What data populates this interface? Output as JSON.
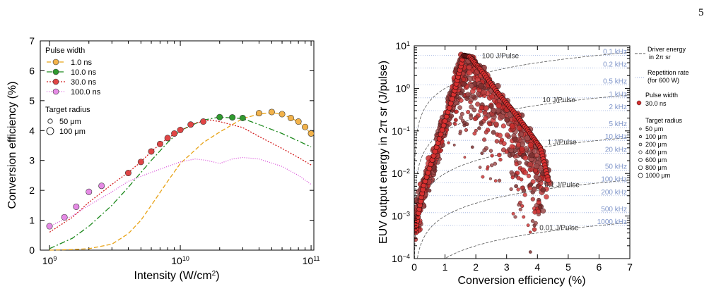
{
  "page_number": "5",
  "chart_data": [
    {
      "type": "line",
      "xlabel": "Intensity (W/cm²)",
      "xlabel_parts": {
        "base": "Intensity (W/cm",
        "sup": "2",
        "end": ")"
      },
      "ylabel": "Conversion efficiency (%)",
      "x_scale": "log",
      "xlim": [
        850000000.0,
        105000000000.0
      ],
      "ylim": [
        0,
        7
      ],
      "x_ticks": [
        {
          "value": 1000000000.0,
          "base": "10",
          "exp": "9"
        },
        {
          "value": 10000000000.0,
          "base": "10",
          "exp": "10"
        },
        {
          "value": 100000000000.0,
          "base": "10",
          "exp": "11"
        }
      ],
      "y_ticks": [
        "0",
        "1",
        "2",
        "3",
        "4",
        "5",
        "6",
        "7"
      ],
      "legend_title": "Pulse width",
      "legend_radius_title": "Target radius",
      "legend_radius": [
        {
          "label": "50 μm",
          "r": 3.2
        },
        {
          "label": "100 μm",
          "r": 5
        }
      ],
      "series": [
        {
          "name": "1.0 ns",
          "color": "#e8a317",
          "marker_fill": "#f2b24a",
          "dash": "6,3",
          "x": [
            1000000000.0,
            1500000000.0,
            2000000000.0,
            3000000000.0,
            4000000000.0,
            5000000000.0,
            6000000000.0,
            8000000000.0,
            10000000000.0,
            15000000000.0,
            20000000000.0,
            30000000000.0,
            40000000000.0,
            50000000000.0,
            60000000000.0,
            80000000000.0,
            100000000000.0
          ],
          "y": [
            0.0,
            0.02,
            0.05,
            0.2,
            0.55,
            1.0,
            1.5,
            2.3,
            2.9,
            3.6,
            3.95,
            4.4,
            4.55,
            4.6,
            4.55,
            4.3,
            3.9
          ],
          "markers": [
            [
              40000000000.0,
              4.58
            ],
            [
              50000000000.0,
              4.62
            ],
            [
              60000000000.0,
              4.55
            ],
            [
              70000000000.0,
              4.42
            ],
            [
              80000000000.0,
              4.3
            ],
            [
              90000000000.0,
              4.12
            ],
            [
              100000000000.0,
              3.9
            ]
          ]
        },
        {
          "name": "10.0 ns",
          "color": "#1e8a1e",
          "marker_fill": "#2f9a2f",
          "dash": "8,3,2,3",
          "x": [
            1000000000.0,
            1500000000.0,
            2000000000.0,
            3000000000.0,
            4000000000.0,
            6000000000.0,
            8000000000.0,
            10000000000.0,
            15000000000.0,
            20000000000.0,
            30000000000.0,
            40000000000.0,
            60000000000.0,
            80000000000.0,
            100000000000.0
          ],
          "y": [
            0.05,
            0.4,
            0.8,
            1.5,
            2.1,
            3.0,
            3.6,
            4.0,
            4.35,
            4.45,
            4.4,
            4.2,
            3.9,
            3.65,
            3.45
          ],
          "markers": [
            [
              20000000000.0,
              4.45
            ],
            [
              25000000000.0,
              4.44
            ],
            [
              30000000000.0,
              4.42
            ]
          ]
        },
        {
          "name": "30.0 ns",
          "color": "#d42020",
          "marker_fill": "#e04545",
          "dash": "2,2",
          "x": [
            1000000000.0,
            1500000000.0,
            2000000000.0,
            3000000000.0,
            4000000000.0,
            5000000000.0,
            6000000000.0,
            8000000000.0,
            10000000000.0,
            13000000000.0,
            17000000000.0,
            20000000000.0,
            30000000000.0,
            40000000000.0,
            60000000000.0,
            80000000000.0,
            100000000000.0
          ],
          "y": [
            0.6,
            1.1,
            1.6,
            2.2,
            2.6,
            2.95,
            3.3,
            3.75,
            4.0,
            4.25,
            4.35,
            4.3,
            4.1,
            3.8,
            3.4,
            3.1,
            2.85
          ],
          "markers": [
            [
              4000000000.0,
              2.58
            ],
            [
              5000000000.0,
              2.95
            ],
            [
              6000000000.0,
              3.3
            ],
            [
              7000000000.0,
              3.55
            ],
            [
              8000000000.0,
              3.75
            ],
            [
              9000000000.0,
              3.9
            ],
            [
              10000000000.0,
              4.02
            ],
            [
              12000000000.0,
              4.2
            ],
            [
              15000000000.0,
              4.3
            ]
          ]
        },
        {
          "name": "100.0 ns",
          "color": "#d94fd9",
          "marker_fill": "#e58ae5",
          "dash": "1,2",
          "x": [
            1000000000.0,
            1500000000.0,
            2000000000.0,
            3000000000.0,
            4000000000.0,
            6000000000.0,
            8000000000.0,
            10000000000.0,
            13000000000.0,
            16000000000.0,
            20000000000.0,
            25000000000.0,
            30000000000.0,
            40000000000.0,
            60000000000.0,
            80000000000.0,
            100000000000.0
          ],
          "y": [
            0.8,
            1.15,
            1.5,
            1.95,
            2.3,
            2.6,
            2.8,
            2.95,
            3.05,
            3.0,
            2.9,
            3.05,
            3.1,
            3.05,
            2.8,
            2.5,
            2.2
          ],
          "markers": [
            [
              1000000000.0,
              0.8
            ],
            [
              1300000000.0,
              1.1
            ],
            [
              1600000000.0,
              1.45
            ],
            [
              2000000000.0,
              1.95
            ],
            [
              2500000000.0,
              2.15
            ]
          ]
        }
      ]
    },
    {
      "type": "scatter",
      "xlabel": "Conversion efficiency (%)",
      "ylabel": "EUV output energy in 2π sr (J/pulse)",
      "y_scale": "log",
      "xlim": [
        0,
        7
      ],
      "ylim": [
        0.0001,
        10
      ],
      "x_ticks": [
        "0",
        "1",
        "2",
        "3",
        "4",
        "5",
        "6",
        "7"
      ],
      "y_ticks": [
        {
          "value": 0.0001,
          "base": "10",
          "exp": "−4"
        },
        {
          "value": 0.001,
          "base": "10",
          "exp": "−3"
        },
        {
          "value": 0.01,
          "base": "10",
          "exp": "−2"
        },
        {
          "value": 0.1,
          "base": "10",
          "exp": "−1"
        },
        {
          "value": 1,
          "base": "10",
          "exp": "0"
        },
        {
          "value": 10,
          "base": "10",
          "exp": "1"
        }
      ],
      "driver_energy_curves": [
        {
          "label": "100 J/Pulse",
          "energy": 100,
          "label_x": 2.8
        },
        {
          "label": "10 J/Pulse",
          "energy": 10,
          "label_x": 4.7
        },
        {
          "label": "1 J/Pulse",
          "energy": 1,
          "label_x": 4.8
        },
        {
          "label": "0.1 J/Pulse",
          "energy": 0.1,
          "label_x": 4.8
        },
        {
          "label": "0.01 J/Pulse",
          "energy": 0.01,
          "label_x": 4.7
        }
      ],
      "repetition_rates": [
        {
          "label": "0.1 kHz",
          "energy": 6.0
        },
        {
          "label": "0.2 kHz",
          "energy": 3.0
        },
        {
          "label": "0.5 kHz",
          "energy": 1.2
        },
        {
          "label": "1 kHz",
          "energy": 0.6
        },
        {
          "label": "2 kHz",
          "energy": 0.3
        },
        {
          "label": "5 kHz",
          "energy": 0.12
        },
        {
          "label": "10 kHz",
          "energy": 0.06
        },
        {
          "label": "20 kHz",
          "energy": 0.03
        },
        {
          "label": "50 kHz",
          "energy": 0.012
        },
        {
          "label": "100 kHz",
          "energy": 0.006
        },
        {
          "label": "200 kHz",
          "energy": 0.003
        },
        {
          "label": "500 kHz",
          "energy": 0.0012
        },
        {
          "label": "1000 kHz",
          "energy": 0.0006
        }
      ],
      "scatter_description": {
        "pulse_width": "30.0 ns",
        "marker_color": "#c42a2a",
        "ridge_points": [
          [
            0.05,
            0.0005
          ],
          [
            0.3,
            0.005
          ],
          [
            0.8,
            0.06
          ],
          [
            1.3,
            0.8
          ],
          [
            1.6,
            6.0
          ],
          [
            1.8,
            5.5
          ],
          [
            2.2,
            2.5
          ],
          [
            2.7,
            0.8
          ],
          [
            3.2,
            0.3
          ],
          [
            3.7,
            0.1
          ],
          [
            4.1,
            0.04
          ],
          [
            4.35,
            0.007
          ]
        ]
      },
      "legend": {
        "driver_energy": "Driver energy",
        "driver_energy_2": "in 2π sr",
        "repetition_rate": "Repetition rate",
        "repetition_rate_2": "(for 600 W)",
        "pulse_width_title": "Pulse width",
        "pulse_width_value": "30.0 ns",
        "target_radius_title": "Target radius",
        "target_radius": [
          {
            "label": "50 μm",
            "r": 1.3
          },
          {
            "label": "100 μm",
            "r": 1.6
          },
          {
            "label": "200 μm",
            "r": 1.9
          },
          {
            "label": "400 μm",
            "r": 2.2
          },
          {
            "label": "600 μm",
            "r": 2.5
          },
          {
            "label": "800 μm",
            "r": 2.8
          },
          {
            "label": "1000 μm",
            "r": 3.1
          }
        ]
      }
    }
  ]
}
